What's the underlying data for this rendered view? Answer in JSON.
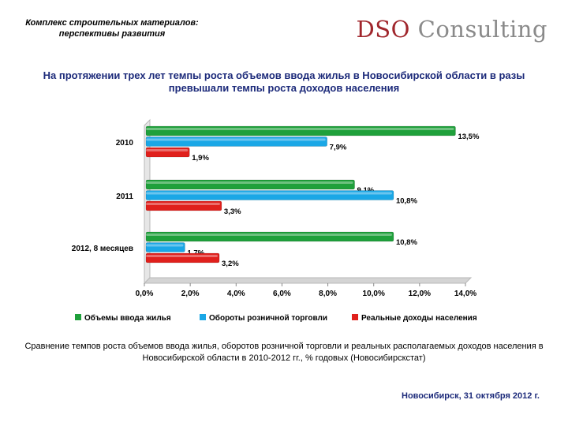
{
  "header": {
    "subtitle": "Комплекс строительных материалов: перспективы развития",
    "brand_dso": "DSO",
    "brand_rest": "Consulting",
    "brand_color": "#a0262c"
  },
  "main_title": "На протяжении трех лет темпы роста объемов ввода жилья в Новосибирской области в разы превышали темпы роста доходов населения",
  "chart_data": {
    "type": "bar",
    "orientation": "horizontal",
    "categories": [
      "2010",
      "2011",
      "2012, 8 месяцев"
    ],
    "series": [
      {
        "name": "Объемы ввода жилья",
        "color": "#1fa03b",
        "values": [
          13.5,
          9.1,
          10.8
        ],
        "labels": [
          "13,5%",
          "9,1%",
          "10,8%"
        ]
      },
      {
        "name": "Обороты розничной торговли",
        "color": "#1aa7e6",
        "values": [
          7.9,
          10.8,
          1.7
        ],
        "labels": [
          "7,9%",
          "10,8%",
          "1,7%"
        ]
      },
      {
        "name": "Реальные доходы населения",
        "color": "#e0201c",
        "values": [
          1.9,
          3.3,
          3.2
        ],
        "labels": [
          "1,9%",
          "3,3%",
          "3,2%"
        ]
      }
    ],
    "xlim": [
      0,
      14
    ],
    "xticks": [
      0,
      2,
      4,
      6,
      8,
      10,
      12,
      14
    ],
    "xtick_labels": [
      "0,0%",
      "2,0%",
      "4,0%",
      "6,0%",
      "8,0%",
      "10,0%",
      "12,0%",
      "14,0%"
    ],
    "legend_position": "bottom",
    "grid": false
  },
  "caption": "Сравнение темпов роста объемов ввода жилья, оборотов розничной торговли и реальных располагаемых доходов населения в Новосибирской области в 2010-2012 гг., % годовых (Новосибирскстат)",
  "footer": "Новосибирск, 31 октября 2012 г."
}
